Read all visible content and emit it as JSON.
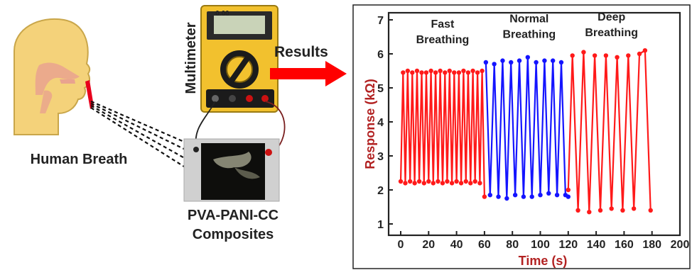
{
  "labels": {
    "human_breath": "Human Breath",
    "multimeter": "Multimeter",
    "composite_line1": "PVA-PANI-CC",
    "composite_line2": "Composites",
    "results": "Results",
    "meter_reading": "0.00"
  },
  "colors": {
    "head_fill": "#f4d27a",
    "head_stroke": "#c9a64a",
    "airway": "#e9a38f",
    "nose_red": "#e8001c",
    "meter_body": "#f2c12e",
    "meter_dark": "#1b1b1b",
    "arrow_red": "#ff0000",
    "axis_label": "#b22222",
    "fast_series": "#ff1a1a",
    "normal_series": "#1414ff",
    "deep_series": "#ff1a1a"
  },
  "chart_data": {
    "type": "line",
    "xlabel": "Time (s)",
    "ylabel": "Response (kΩ)",
    "xlim": [
      0,
      200
    ],
    "ylim": [
      0.6,
      7
    ],
    "x_ticks": [
      0,
      20,
      40,
      60,
      80,
      100,
      120,
      140,
      160,
      180,
      200
    ],
    "y_ticks": [
      1,
      2,
      3,
      4,
      5,
      6,
      7
    ],
    "annotations": [
      {
        "lines": [
          "Fast",
          "Breathing"
        ],
        "x": 30,
        "y": 6.4
      },
      {
        "lines": [
          "Normal",
          "Breathing"
        ],
        "x": 92,
        "y": 6.55
      },
      {
        "lines": [
          "Deep",
          "Breathing"
        ],
        "x": 151,
        "y": 6.6
      }
    ],
    "series": [
      {
        "segment": "fast",
        "x": [
          0,
          1.7,
          3.3,
          5,
          6.7,
          8.3,
          10,
          11.7,
          13.3,
          15,
          16.7,
          18.3,
          20,
          21.7,
          23.3,
          25,
          26.7,
          28.3,
          30,
          31.7,
          33.3,
          35,
          36.7,
          38.3,
          40,
          41.7,
          43.3,
          45,
          46.7,
          48.3,
          50,
          51.7,
          53.3,
          55,
          56.7,
          58.3,
          60
        ],
        "y": [
          2.25,
          5.45,
          2.2,
          5.5,
          2.25,
          5.45,
          2.2,
          5.5,
          2.25,
          5.45,
          2.2,
          5.45,
          2.25,
          5.5,
          2.2,
          5.45,
          2.25,
          5.5,
          2.2,
          5.45,
          2.25,
          5.5,
          2.2,
          5.45,
          2.25,
          5.45,
          2.2,
          5.5,
          2.25,
          5.45,
          2.2,
          5.5,
          2.25,
          5.45,
          2.2,
          5.5,
          1.8
        ]
      },
      {
        "segment": "normal",
        "x": [
          61,
          64,
          67,
          70,
          73,
          76,
          79,
          82,
          85,
          88,
          91,
          94,
          97,
          100,
          103,
          106,
          109,
          112,
          115,
          118,
          120
        ],
        "y": [
          5.75,
          1.85,
          5.7,
          1.8,
          5.8,
          1.75,
          5.75,
          1.85,
          5.8,
          1.8,
          5.9,
          1.8,
          5.75,
          1.85,
          5.8,
          1.9,
          5.8,
          1.85,
          5.75,
          1.85,
          1.8
        ]
      },
      {
        "segment": "deep",
        "x": [
          120,
          123,
          127,
          131,
          135,
          139,
          143,
          147,
          151,
          155,
          159,
          163,
          167,
          171,
          175,
          179
        ],
        "y": [
          2.0,
          5.95,
          1.4,
          6.05,
          1.35,
          5.95,
          1.4,
          5.95,
          1.45,
          5.9,
          1.4,
          5.95,
          1.45,
          6.0,
          6.1,
          1.4
        ]
      }
    ]
  }
}
